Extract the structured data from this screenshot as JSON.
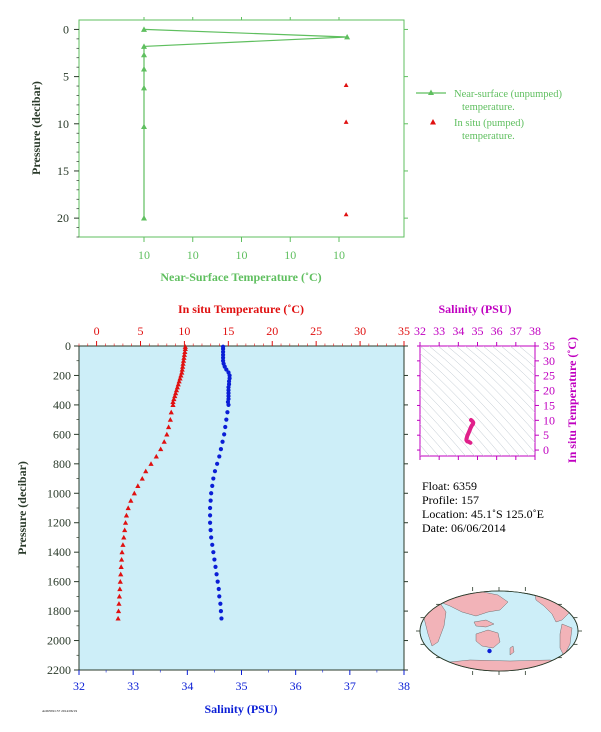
{
  "colors": {
    "near_surface": "#5fbf5f",
    "in_situ_temp": "#e01010",
    "salinity": "#0a1ed6",
    "ts_magenta": "#c000c0",
    "ts_trace": "#e0208a",
    "panel_bg": "#cdeef8",
    "axis_dark": "#2a3a2a",
    "land": "#f2b3b8",
    "ocean": "#cdeef8"
  },
  "chart_data": [
    {
      "id": "near_surface",
      "type": "line",
      "xlabel": "Near-Surface Temperature (˚C)",
      "ylabel": "Pressure (decibar)",
      "xlim": [
        9.999,
        10.001
      ],
      "ylim": [
        22,
        -1
      ],
      "xticks": [
        9.9994,
        9.9997,
        10.0,
        10.0003,
        10.0006
      ],
      "xtick_labels": [
        "10",
        "10",
        "10",
        "10",
        "10"
      ],
      "yticks": [
        0,
        5,
        10,
        15,
        20
      ],
      "legend": {
        "placement": "right",
        "unpumped_line1": "Near-surface (unpumped)",
        "unpumped_line2": "temperature.",
        "pumped_line1": "In situ (pumped)",
        "pumped_line2": "temperature."
      },
      "series": [
        {
          "name": "Near-surface (unpumped) temperature.",
          "x": [
            9.9994,
            10.00065,
            9.9994,
            9.9994,
            9.9994,
            9.9994,
            9.9994,
            9.9994
          ],
          "y": [
            0,
            0.8,
            1.8,
            2.7,
            4.2,
            6.2,
            10.3,
            20.0
          ]
        },
        {
          "name": "In situ (pumped) temperature.",
          "x": [
            10.00065,
            10.00065,
            10.00065
          ],
          "y": [
            5.9,
            9.8,
            19.6
          ]
        }
      ]
    },
    {
      "id": "profile",
      "type": "scatter",
      "ylabel": "Pressure (decibar)",
      "ylim": [
        2200,
        0
      ],
      "yticks": [
        0,
        200,
        400,
        600,
        800,
        1000,
        1200,
        1400,
        1600,
        1800,
        2000,
        2200
      ],
      "temp_axis": {
        "label": "In situ Temperature (˚C)",
        "lim": [
          -2,
          35
        ],
        "ticks": [
          0,
          5,
          10,
          15,
          20,
          25,
          30,
          35
        ]
      },
      "sal_axis": {
        "label": "Salinity (PSU)",
        "lim": [
          32,
          38
        ],
        "ticks": [
          32,
          33,
          34,
          35,
          36,
          37,
          38
        ]
      },
      "temperature": {
        "p": [
          5,
          20,
          40,
          60,
          80,
          100,
          120,
          140,
          160,
          180,
          200,
          220,
          240,
          260,
          280,
          300,
          320,
          340,
          360,
          380,
          400,
          450,
          500,
          550,
          600,
          650,
          700,
          750,
          800,
          850,
          900,
          950,
          1000,
          1050,
          1100,
          1150,
          1200,
          1250,
          1300,
          1350,
          1400,
          1450,
          1500,
          1550,
          1600,
          1650,
          1700,
          1750,
          1800,
          1850
        ],
        "t": [
          10.1,
          10.1,
          10.05,
          10.0,
          9.95,
          9.9,
          9.85,
          9.8,
          9.75,
          9.7,
          9.6,
          9.5,
          9.4,
          9.3,
          9.2,
          9.1,
          9.0,
          8.9,
          8.8,
          8.7,
          8.7,
          8.5,
          8.4,
          8.2,
          8.0,
          7.7,
          7.3,
          6.8,
          6.2,
          5.6,
          5.2,
          4.7,
          4.3,
          3.9,
          3.6,
          3.4,
          3.3,
          3.2,
          3.1,
          3.0,
          2.9,
          2.85,
          2.8,
          2.75,
          2.7,
          2.65,
          2.6,
          2.55,
          2.5,
          2.45
        ]
      },
      "salinity": {
        "p": [
          5,
          20,
          40,
          60,
          80,
          100,
          120,
          140,
          160,
          180,
          200,
          220,
          240,
          260,
          280,
          300,
          320,
          340,
          360,
          380,
          400,
          450,
          500,
          550,
          600,
          650,
          700,
          750,
          800,
          850,
          900,
          950,
          1000,
          1050,
          1100,
          1150,
          1200,
          1250,
          1300,
          1350,
          1400,
          1450,
          1500,
          1550,
          1600,
          1650,
          1700,
          1750,
          1800,
          1850
        ],
        "s": [
          34.66,
          34.66,
          34.66,
          34.66,
          34.66,
          34.66,
          34.67,
          34.69,
          34.72,
          34.76,
          34.78,
          34.78,
          34.77,
          34.77,
          34.76,
          34.76,
          34.76,
          34.76,
          34.76,
          34.75,
          34.76,
          34.74,
          34.72,
          34.7,
          34.68,
          34.65,
          34.62,
          34.59,
          34.55,
          34.51,
          34.48,
          34.46,
          34.44,
          34.43,
          34.42,
          34.42,
          34.42,
          34.43,
          34.44,
          34.46,
          34.48,
          34.5,
          34.52,
          34.54,
          34.56,
          34.58,
          34.59,
          34.61,
          34.62,
          34.63
        ]
      }
    },
    {
      "id": "ts_inset",
      "type": "line",
      "xlabel": "Salinity (PSU)",
      "ylabel": "In situ Temperature (˚C)",
      "xlim": [
        32,
        38
      ],
      "ylim": [
        -2,
        35
      ],
      "xticks": [
        32,
        33,
        34,
        35,
        36,
        37,
        38
      ],
      "yticks": [
        0,
        5,
        10,
        15,
        20,
        25,
        30,
        35
      ],
      "s": [
        34.66,
        34.7,
        34.76,
        34.78,
        34.76,
        34.72,
        34.65,
        34.55,
        34.46,
        34.42,
        34.42,
        34.46,
        34.52,
        34.59,
        34.63
      ],
      "t": [
        10.1,
        9.9,
        9.5,
        9.2,
        8.7,
        8.4,
        7.6,
        6.0,
        4.7,
        3.7,
        3.3,
        2.9,
        2.8,
        2.6,
        2.45
      ]
    }
  ],
  "info": {
    "float": "Float:  6359",
    "profile": "Profile:  157",
    "location": "Location:  45.1˚S  125.0˚E",
    "date": "Date:  06/06/2014"
  },
  "map": {
    "float_lat": -45.1,
    "float_lon": 125.0
  },
  "footer": {
    "stamp": "AO6359/157 2014/06/19"
  }
}
